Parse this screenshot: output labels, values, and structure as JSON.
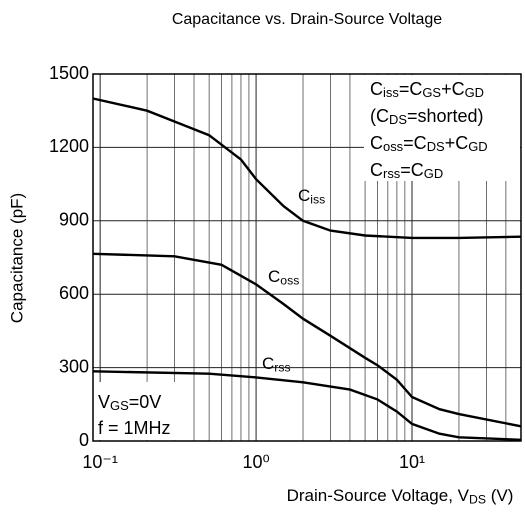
{
  "chart_data": {
    "type": "line",
    "title": "Capacitance vs. Drain-Source Voltage",
    "x_label": [
      {
        "text": "Drain-Source Voltage, V"
      },
      {
        "sub": "DS"
      },
      {
        "text": "  (V)"
      }
    ],
    "y_label": "Capacitance (pF)",
    "log_x": true,
    "grid": true,
    "xlim": [
      0.09,
      50
    ],
    "ylim": [
      0,
      1500
    ],
    "xticks": [
      {
        "value": 0.1,
        "label": "10⁻¹"
      },
      {
        "value": 1,
        "label": "10⁰"
      },
      {
        "value": 10,
        "label": "10¹"
      }
    ],
    "yticks": [
      0,
      300,
      600,
      900,
      1200,
      1500
    ],
    "series": [
      {
        "name": [
          {
            "text": "C"
          },
          {
            "sub": "iss"
          }
        ],
        "color": "#000000",
        "x": [
          0.09,
          0.2,
          0.5,
          0.8,
          1,
          1.5,
          2,
          3,
          5,
          10,
          20,
          50
        ],
        "values": [
          1400,
          1350,
          1250,
          1150,
          1070,
          960,
          900,
          860,
          840,
          830,
          830,
          835
        ]
      },
      {
        "name": [
          {
            "text": "C"
          },
          {
            "sub": "oss"
          }
        ],
        "color": "#000000",
        "x": [
          0.09,
          0.3,
          0.6,
          1,
          1.5,
          2,
          3,
          5,
          6,
          8,
          10,
          15,
          20,
          50
        ],
        "values": [
          765,
          755,
          720,
          640,
          560,
          500,
          430,
          340,
          310,
          250,
          180,
          130,
          110,
          60
        ]
      },
      {
        "name": [
          {
            "text": "C"
          },
          {
            "sub": "rss"
          }
        ],
        "color": "#000000",
        "x": [
          0.09,
          0.5,
          1,
          2,
          4,
          6,
          8,
          10,
          15,
          20,
          50
        ],
        "values": [
          285,
          275,
          260,
          240,
          210,
          170,
          120,
          70,
          30,
          15,
          5
        ]
      }
    ],
    "annotations": [
      [
        {
          "text": "C"
        },
        {
          "sub": "iss"
        },
        {
          "text": "=C"
        },
        {
          "sub": "GS"
        },
        {
          "text": "+C"
        },
        {
          "sub": "GD"
        }
      ],
      [
        {
          "text": "(C"
        },
        {
          "sub": "DS"
        },
        {
          "text": "=shorted)"
        }
      ],
      [
        {
          "text": "C"
        },
        {
          "sub": "oss"
        },
        {
          "text": "=C"
        },
        {
          "sub": "DS"
        },
        {
          "text": "+C"
        },
        {
          "sub": "GD"
        }
      ],
      [
        {
          "text": "C"
        },
        {
          "sub": "rss"
        },
        {
          "text": "=C"
        },
        {
          "sub": "GD"
        }
      ],
      [
        {
          "text": "V"
        },
        {
          "sub": "GS"
        },
        {
          "text": "=0V"
        }
      ],
      [
        {
          "text": "f = 1MHz"
        }
      ]
    ]
  }
}
